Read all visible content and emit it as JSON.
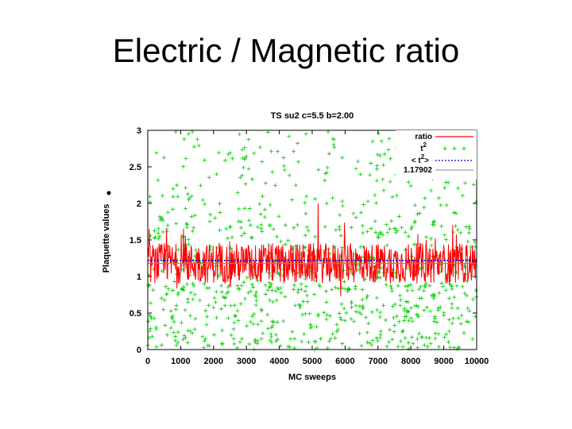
{
  "slide": {
    "title": "Electric / Magnetic ratio"
  },
  "chart_data": {
    "type": "scatter",
    "title": "TS su2 c=5.5 b=2.00",
    "xlabel": "MC sweeps",
    "ylabel": "Plaquette values",
    "xlim": [
      0,
      10000
    ],
    "ylim": [
      0,
      3
    ],
    "xticks": [
      "0",
      "1000",
      "2000",
      "3000",
      "4000",
      "5000",
      "6000",
      "7000",
      "8000",
      "9000",
      "10000"
    ],
    "yticks": [
      "0",
      "0.5",
      "1",
      "1.5",
      "2",
      "2.5",
      "3"
    ],
    "legend_position": "top-right",
    "colors": {
      "ratio": "#ff0000",
      "t2": "#00cc00",
      "mean_t2": "#0000cc",
      "const": "#888888"
    },
    "series": [
      {
        "name": "ratio",
        "style": "line",
        "color": "#ff0000",
        "description_values": {
          "center": 1.18,
          "spread": 0.45
        }
      },
      {
        "name": "t²",
        "style": "points",
        "color": "#00cc00",
        "description_values": {
          "min": 0,
          "max": 3
        }
      },
      {
        "name": "< t² >",
        "style": "dotted-line",
        "color": "#0000cc",
        "value": 1.22
      },
      {
        "name": "1.17902",
        "style": "line",
        "color": "#888888",
        "value": 1.17902
      }
    ],
    "legend": [
      "ratio",
      "t",
      "< t",
      ">",
      "1.17902"
    ]
  }
}
